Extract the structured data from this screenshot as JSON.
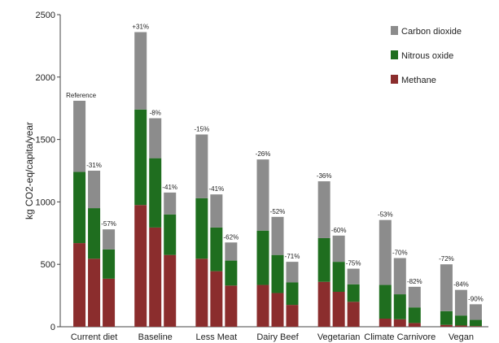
{
  "chart_data": {
    "type": "bar",
    "stacked": true,
    "grouping": "3 scenario bars per diet category",
    "ylabel": "kg CO2-eq/capita/year",
    "ylim": [
      0,
      2500
    ],
    "yticks": [
      "0",
      "500",
      "1000",
      "1500",
      "2000",
      "2500"
    ],
    "grid": false,
    "legend_position": "top-right",
    "legend": [
      "Carbon dioxide",
      "Nitrous oxide",
      "Methane"
    ],
    "colors": {
      "Methane": "#8b2d2d",
      "Nitrous oxide": "#1f6e1f",
      "Carbon dioxide": "#8c8c8c"
    },
    "groups": [
      {
        "category": "Current diet",
        "bars": [
          {
            "label": "Reference",
            "methane": 670,
            "nitrous_oxide": 570,
            "carbon_dioxide": 570
          },
          {
            "label": "-31%",
            "methane": 545,
            "nitrous_oxide": 405,
            "carbon_dioxide": 300
          },
          {
            "label": "-57%",
            "methane": 385,
            "nitrous_oxide": 235,
            "carbon_dioxide": 160
          }
        ]
      },
      {
        "category": "Baseline",
        "bars": [
          {
            "label": "+31%",
            "methane": 975,
            "nitrous_oxide": 765,
            "carbon_dioxide": 620
          },
          {
            "label": "-8%",
            "methane": 795,
            "nitrous_oxide": 555,
            "carbon_dioxide": 320
          },
          {
            "label": "-41%",
            "methane": 575,
            "nitrous_oxide": 325,
            "carbon_dioxide": 175
          }
        ]
      },
      {
        "category": "Less Meat",
        "bars": [
          {
            "label": "-15%",
            "methane": 545,
            "nitrous_oxide": 485,
            "carbon_dioxide": 510
          },
          {
            "label": "-41%",
            "methane": 445,
            "nitrous_oxide": 350,
            "carbon_dioxide": 265
          },
          {
            "label": "-62%",
            "methane": 330,
            "nitrous_oxide": 200,
            "carbon_dioxide": 145
          }
        ]
      },
      {
        "category": "Dairy Beef",
        "bars": [
          {
            "label": "-26%",
            "methane": 335,
            "nitrous_oxide": 435,
            "carbon_dioxide": 570
          },
          {
            "label": "-52%",
            "methane": 270,
            "nitrous_oxide": 305,
            "carbon_dioxide": 305
          },
          {
            "label": "-71%",
            "methane": 175,
            "nitrous_oxide": 180,
            "carbon_dioxide": 165
          }
        ]
      },
      {
        "category": "Vegetarian",
        "bars": [
          {
            "label": "-36%",
            "methane": 360,
            "nitrous_oxide": 350,
            "carbon_dioxide": 455
          },
          {
            "label": "-60%",
            "methane": 280,
            "nitrous_oxide": 240,
            "carbon_dioxide": 210
          },
          {
            "label": "-75%",
            "methane": 200,
            "nitrous_oxide": 140,
            "carbon_dioxide": 125
          }
        ]
      },
      {
        "category": "Climate Carnivore",
        "bars": [
          {
            "label": "-53%",
            "methane": 65,
            "nitrous_oxide": 270,
            "carbon_dioxide": 520
          },
          {
            "label": "-70%",
            "methane": 60,
            "nitrous_oxide": 200,
            "carbon_dioxide": 290
          },
          {
            "label": "-82%",
            "methane": 30,
            "nitrous_oxide": 125,
            "carbon_dioxide": 165
          }
        ]
      },
      {
        "category": "Vegan",
        "bars": [
          {
            "label": "-72%",
            "methane": 15,
            "nitrous_oxide": 110,
            "carbon_dioxide": 375
          },
          {
            "label": "-84%",
            "methane": 10,
            "nitrous_oxide": 80,
            "carbon_dioxide": 205
          },
          {
            "label": "-90%",
            "methane": 5,
            "nitrous_oxide": 50,
            "carbon_dioxide": 125
          }
        ]
      }
    ]
  }
}
